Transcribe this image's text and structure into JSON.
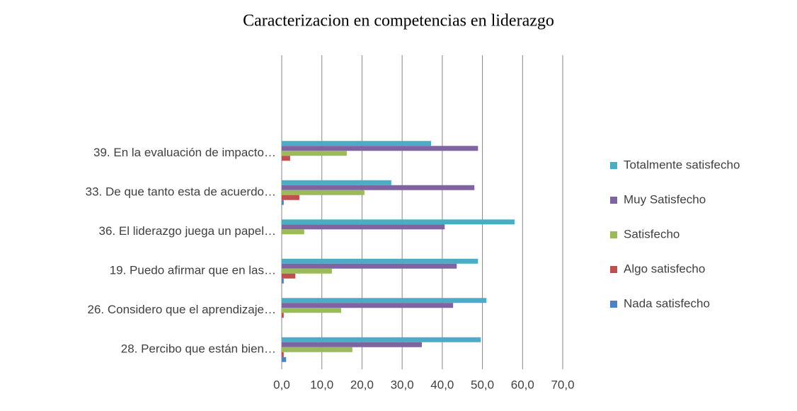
{
  "chart_data": {
    "type": "bar",
    "orientation": "horizontal",
    "title": "Caracterizacion en competencias en liderazgo",
    "categories": [
      "28. Percibo que están bien…",
      "26. Considero que el aprendizaje…",
      "19. Puedo afirmar que en las…",
      "36. El liderazgo juega un papel…",
      "33. De que tanto esta de acuerdo…",
      "39. En la evaluación de impacto…",
      null,
      null
    ],
    "series": [
      {
        "name": "Totalmente satisfecho",
        "color": "#4bacc6",
        "values": [
          49.6,
          51.0,
          48.9,
          58.0,
          27.3,
          37.2,
          null,
          null
        ]
      },
      {
        "name": "Muy Satisfecho",
        "color": "#8064a2",
        "values": [
          34.9,
          42.7,
          43.6,
          40.6,
          48.0,
          48.9,
          null,
          null
        ]
      },
      {
        "name": "Satisfecho",
        "color": "#9bbb59",
        "values": [
          17.6,
          14.8,
          12.5,
          5.6,
          20.6,
          16.2,
          null,
          null
        ]
      },
      {
        "name": "Algo satisfecho",
        "color": "#c0504d",
        "values": [
          0.5,
          0.5,
          3.4,
          0,
          4.4,
          2.1,
          null,
          null
        ]
      },
      {
        "name": "Nada satisfecho",
        "color": "#4f81bd",
        "values": [
          1.1,
          0,
          0.5,
          0,
          0.5,
          0,
          null,
          null
        ]
      }
    ],
    "xlim": [
      0,
      70
    ],
    "xticks": [
      {
        "value": 0,
        "label": "0,0"
      },
      {
        "value": 10,
        "label": "10,0"
      },
      {
        "value": 20,
        "label": "20,0"
      },
      {
        "value": 30,
        "label": "30,0"
      },
      {
        "value": 40,
        "label": "40,0"
      },
      {
        "value": 50,
        "label": "50,0"
      },
      {
        "value": 60,
        "label": "60,0"
      },
      {
        "value": 70,
        "label": "70,0"
      }
    ],
    "grid": true,
    "legend": "right"
  }
}
